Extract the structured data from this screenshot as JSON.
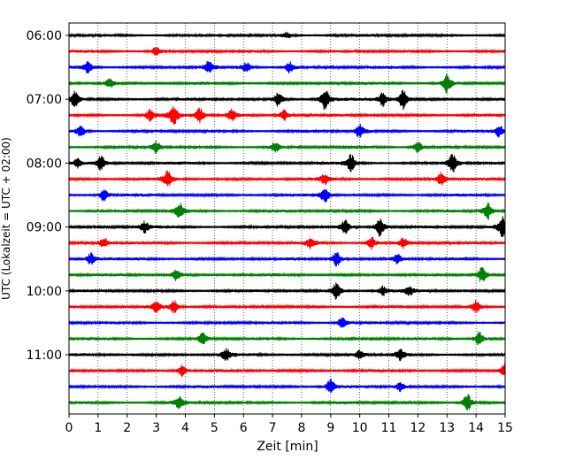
{
  "chart_data": {
    "type": "line",
    "title": "",
    "xlabel": "Zeit  [min]",
    "ylabel": "UTC (Lokalzeit = UTC + 02:00)",
    "xlim": [
      0,
      15
    ],
    "x_ticks": [
      0,
      1,
      2,
      3,
      4,
      5,
      6,
      7,
      8,
      9,
      10,
      11,
      12,
      13,
      14,
      15
    ],
    "y_tick_labels": [
      "06:00",
      "07:00",
      "08:00",
      "09:00",
      "10:00",
      "11:00"
    ],
    "y_tick_rows": [
      0,
      4,
      8,
      12,
      16,
      20
    ],
    "grid": "vertical dotted",
    "trace_colors": [
      "#000000",
      "#ff0000",
      "#0000ff",
      "#008000"
    ],
    "series": [
      {
        "start": "06:00",
        "color": "#000000",
        "events": [
          {
            "x": 7.5,
            "amp": 2.5
          }
        ]
      },
      {
        "start": "06:15",
        "color": "#ff0000",
        "events": [
          {
            "x": 3.0,
            "amp": 3.5
          }
        ]
      },
      {
        "start": "06:30",
        "color": "#0000ff",
        "events": [
          {
            "x": 0.65,
            "amp": 5
          },
          {
            "x": 4.8,
            "amp": 5
          },
          {
            "x": 6.1,
            "amp": 4
          },
          {
            "x": 7.6,
            "amp": 5
          }
        ]
      },
      {
        "start": "06:45",
        "color": "#008000",
        "events": [
          {
            "x": 1.4,
            "amp": 4
          },
          {
            "x": 13.0,
            "amp": 8
          }
        ]
      },
      {
        "start": "07:00",
        "color": "#000000",
        "events": [
          {
            "x": 0.2,
            "amp": 7
          },
          {
            "x": 7.2,
            "amp": 6
          },
          {
            "x": 8.8,
            "amp": 9
          },
          {
            "x": 10.8,
            "amp": 6
          },
          {
            "x": 11.5,
            "amp": 9
          }
        ]
      },
      {
        "start": "07:15",
        "color": "#ff0000",
        "events": [
          {
            "x": 2.8,
            "amp": 5
          },
          {
            "x": 3.6,
            "amp": 8
          },
          {
            "x": 4.5,
            "amp": 6
          },
          {
            "x": 5.6,
            "amp": 5
          },
          {
            "x": 7.4,
            "amp": 5
          }
        ]
      },
      {
        "start": "07:30",
        "color": "#0000ff",
        "events": [
          {
            "x": 0.4,
            "amp": 5
          },
          {
            "x": 10.0,
            "amp": 6
          },
          {
            "x": 14.8,
            "amp": 5
          }
        ]
      },
      {
        "start": "07:45",
        "color": "#008000",
        "events": [
          {
            "x": 3.0,
            "amp": 5
          },
          {
            "x": 7.1,
            "amp": 4
          },
          {
            "x": 12.0,
            "amp": 5
          }
        ]
      },
      {
        "start": "08:00",
        "color": "#000000",
        "events": [
          {
            "x": 0.3,
            "amp": 4
          },
          {
            "x": 1.1,
            "amp": 6
          },
          {
            "x": 9.7,
            "amp": 7
          },
          {
            "x": 13.2,
            "amp": 8
          }
        ]
      },
      {
        "start": "08:15",
        "color": "#ff0000",
        "events": [
          {
            "x": 3.4,
            "amp": 7
          },
          {
            "x": 8.8,
            "amp": 4
          },
          {
            "x": 12.8,
            "amp": 6
          }
        ]
      },
      {
        "start": "08:30",
        "color": "#0000ff",
        "events": [
          {
            "x": 1.2,
            "amp": 5
          },
          {
            "x": 8.8,
            "amp": 6
          }
        ]
      },
      {
        "start": "08:45",
        "color": "#008000",
        "events": [
          {
            "x": 3.8,
            "amp": 7
          },
          {
            "x": 14.4,
            "amp": 7
          }
        ]
      },
      {
        "start": "09:00",
        "color": "#000000",
        "events": [
          {
            "x": 2.6,
            "amp": 5
          },
          {
            "x": 9.5,
            "amp": 6
          },
          {
            "x": 10.7,
            "amp": 9
          },
          {
            "x": 14.9,
            "amp": 9
          }
        ]
      },
      {
        "start": "09:15",
        "color": "#ff0000",
        "events": [
          {
            "x": 1.2,
            "amp": 4
          },
          {
            "x": 8.3,
            "amp": 4
          },
          {
            "x": 10.4,
            "amp": 5
          },
          {
            "x": 11.5,
            "amp": 4
          }
        ]
      },
      {
        "start": "09:30",
        "color": "#0000ff",
        "events": [
          {
            "x": 0.75,
            "amp": 5
          },
          {
            "x": 9.2,
            "amp": 7
          },
          {
            "x": 11.3,
            "amp": 4
          }
        ]
      },
      {
        "start": "09:45",
        "color": "#008000",
        "events": [
          {
            "x": 3.7,
            "amp": 5
          },
          {
            "x": 14.2,
            "amp": 7
          }
        ]
      },
      {
        "start": "10:00",
        "color": "#000000",
        "events": [
          {
            "x": 9.2,
            "amp": 7
          },
          {
            "x": 10.8,
            "amp": 4
          },
          {
            "x": 11.7,
            "amp": 4
          }
        ]
      },
      {
        "start": "10:15",
        "color": "#ff0000",
        "events": [
          {
            "x": 3.0,
            "amp": 5
          },
          {
            "x": 3.6,
            "amp": 6
          },
          {
            "x": 14.0,
            "amp": 5
          }
        ]
      },
      {
        "start": "10:30",
        "color": "#0000ff",
        "events": [
          {
            "x": 9.4,
            "amp": 5
          }
        ]
      },
      {
        "start": "10:45",
        "color": "#008000",
        "events": [
          {
            "x": 4.6,
            "amp": 5
          },
          {
            "x": 14.1,
            "amp": 6
          }
        ]
      },
      {
        "start": "11:00",
        "color": "#000000",
        "events": [
          {
            "x": 5.4,
            "amp": 5
          },
          {
            "x": 10.0,
            "amp": 4
          },
          {
            "x": 11.4,
            "amp": 4
          }
        ]
      },
      {
        "start": "11:15",
        "color": "#ff0000",
        "events": [
          {
            "x": 3.9,
            "amp": 5
          },
          {
            "x": 15.0,
            "amp": 6
          }
        ]
      },
      {
        "start": "11:30",
        "color": "#0000ff",
        "events": [
          {
            "x": 9.0,
            "amp": 7
          },
          {
            "x": 11.4,
            "amp": 4
          }
        ]
      },
      {
        "start": "11:45",
        "color": "#008000",
        "events": [
          {
            "x": 3.8,
            "amp": 5
          },
          {
            "x": 13.7,
            "amp": 8
          }
        ]
      }
    ]
  }
}
